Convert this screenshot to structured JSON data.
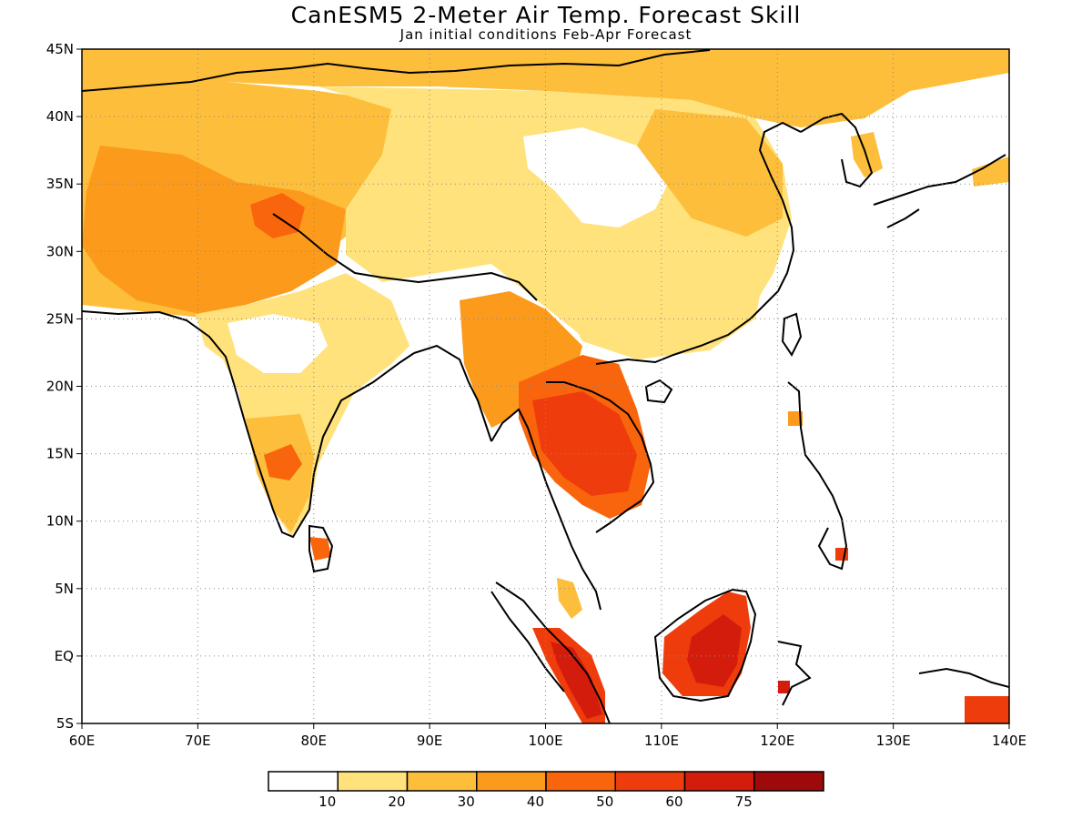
{
  "title": "CanESM5 2-Meter Air Temp. Forecast Skill",
  "subtitle": "Jan initial conditions  Feb-Apr Forecast",
  "map": {
    "lon_range": [
      60,
      140
    ],
    "lat_range": [
      -5,
      45
    ],
    "x_ticks": [
      {
        "lon": 60,
        "label": "60E"
      },
      {
        "lon": 70,
        "label": "70E"
      },
      {
        "lon": 80,
        "label": "80E"
      },
      {
        "lon": 90,
        "label": "90E"
      },
      {
        "lon": 100,
        "label": "100E"
      },
      {
        "lon": 110,
        "label": "110E"
      },
      {
        "lon": 120,
        "label": "120E"
      },
      {
        "lon": 130,
        "label": "130E"
      },
      {
        "lon": 140,
        "label": "140E"
      }
    ],
    "y_ticks": [
      {
        "lat": 45,
        "label": "45N"
      },
      {
        "lat": 40,
        "label": "40N"
      },
      {
        "lat": 35,
        "label": "35N"
      },
      {
        "lat": 30,
        "label": "30N"
      },
      {
        "lat": 25,
        "label": "25N"
      },
      {
        "lat": 20,
        "label": "20N"
      },
      {
        "lat": 15,
        "label": "15N"
      },
      {
        "lat": 10,
        "label": "10N"
      },
      {
        "lat": 5,
        "label": "5N"
      },
      {
        "lat": 0,
        "label": "EQ"
      },
      {
        "lat": -5,
        "label": "5S"
      }
    ],
    "grid": "dotted",
    "fill_colors": [
      "#ffffff",
      "#ffe27c",
      "#fdbe3c",
      "#fc9a1c",
      "#f9650c",
      "#ef3c0c",
      "#d41c0c",
      "#9e0a0a"
    ]
  },
  "colorbar": {
    "labels": [
      "10",
      "20",
      "30",
      "40",
      "50",
      "60",
      "75"
    ],
    "colors": [
      "#ffffff",
      "#ffe27c",
      "#fdbe3c",
      "#fc9a1c",
      "#f9650c",
      "#ef3c0c",
      "#d41c0c",
      "#9e0a0a"
    ]
  },
  "regions": [
    {
      "name": "north-asia-band",
      "level": 2
    },
    {
      "name": "west-asia",
      "level": 2
    },
    {
      "name": "pakistan-north-india",
      "level": 3
    },
    {
      "name": "kashmir-hotspot",
      "level": 4
    },
    {
      "name": "tibet-china",
      "level": 1
    },
    {
      "name": "central-china-white",
      "level": 0
    },
    {
      "name": "south-china",
      "level": 1
    },
    {
      "name": "east-china",
      "level": 2
    },
    {
      "name": "indian-peninsula",
      "level": 1
    },
    {
      "name": "central-india-white",
      "level": 0
    },
    {
      "name": "south-india",
      "level": 2
    },
    {
      "name": "deccan-hotspot",
      "level": 4
    },
    {
      "name": "myanmar",
      "level": 3
    },
    {
      "name": "indochina",
      "level": 4
    },
    {
      "name": "thailand-core",
      "level": 5
    },
    {
      "name": "sri-lanka",
      "level": 4
    },
    {
      "name": "malay-peninsula",
      "level": 2
    },
    {
      "name": "sumatra",
      "level": 5
    },
    {
      "name": "sumatra-core",
      "level": 6
    },
    {
      "name": "borneo",
      "level": 5
    },
    {
      "name": "borneo-core",
      "level": 6
    },
    {
      "name": "sulawesi",
      "level": 6
    },
    {
      "name": "philippines",
      "level": 3
    },
    {
      "name": "mindanao",
      "level": 5
    },
    {
      "name": "new-guinea",
      "level": 5
    },
    {
      "name": "korea",
      "level": 2
    },
    {
      "name": "japan",
      "level": 2
    }
  ]
}
